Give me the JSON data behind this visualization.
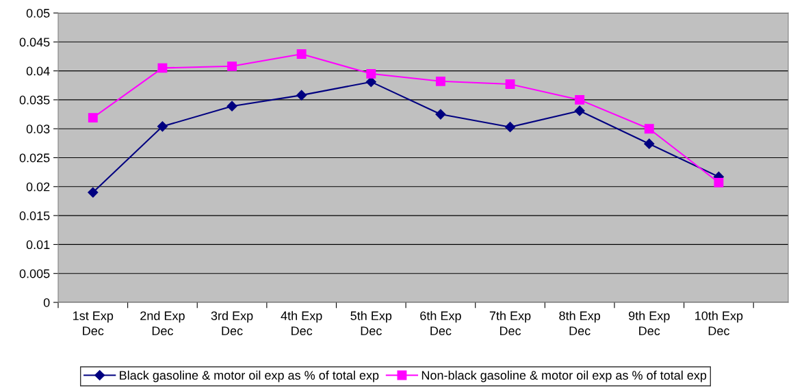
{
  "chart_data": {
    "type": "line",
    "categories": [
      "1st Exp\nDec",
      "2nd Exp\nDec",
      "3rd Exp\nDec",
      "4th Exp\nDec",
      "5th Exp\nDec",
      "6th Exp\nDec",
      "7th Exp\nDec",
      "8th Exp\nDec",
      "9th Exp\nDec",
      "10th Exp\nDec"
    ],
    "series": [
      {
        "name": "Black gasoline & motor oil exp as % of total exp",
        "color": "#000080",
        "marker": "diamond",
        "values": [
          0.019,
          0.0304,
          0.0339,
          0.0358,
          0.0381,
          0.0325,
          0.0303,
          0.0331,
          0.0274,
          0.0217
        ]
      },
      {
        "name": "Non-black gasoline & motor oil exp as % of total exp",
        "color": "#ff00ff",
        "marker": "square",
        "values": [
          0.0319,
          0.0405,
          0.0408,
          0.0429,
          0.0395,
          0.0382,
          0.0377,
          0.035,
          0.03,
          0.0207
        ]
      }
    ],
    "ylim": [
      0,
      0.05
    ],
    "yticks": [
      0,
      0.005,
      0.01,
      0.015,
      0.02,
      0.025,
      0.03,
      0.035,
      0.04,
      0.045,
      0.05
    ],
    "grid": "y",
    "legend": "bottom",
    "line_style": "solid"
  }
}
